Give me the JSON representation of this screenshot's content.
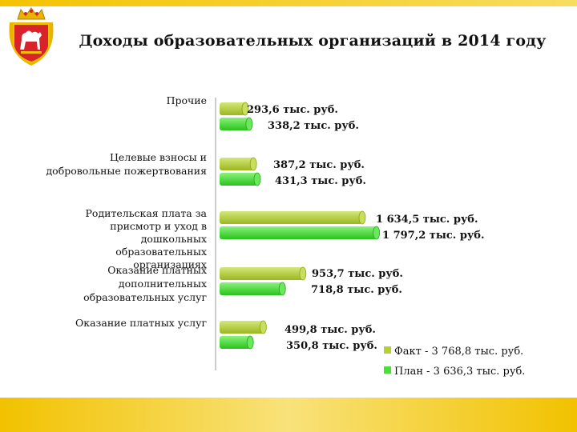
{
  "title": "Доходы образовательных организаций в 2014 году",
  "colors": {
    "fact": "#b6cf34",
    "plan": "#49e03a",
    "band": "#f4c300"
  },
  "chart_data": {
    "type": "bar",
    "orientation": "horizontal",
    "title": "Доходы образовательных организаций в 2014 году",
    "categories": [
      "Прочие",
      "Целевые взносы и добровольные пожертвования",
      "Родительская плата за присмотр и уход в дошкольных образовательных организациях",
      "Оказание платных дополнительных образовательных услуг",
      "Оказание платных услуг"
    ],
    "category_label_lines": [
      [
        "Прочие"
      ],
      [
        "Целевые взносы и",
        "добровольные пожертвования"
      ],
      [
        "Родительская плата за",
        "присмотр и уход в",
        "дошкольных",
        "образовательных",
        "организациях"
      ],
      [
        "Оказание платных",
        "дополнительных",
        "образовательных услуг"
      ],
      [
        "Оказание платных услуг"
      ]
    ],
    "series": [
      {
        "name": "Факт",
        "legend": "Факт - 3 768,8 тыс. руб.",
        "values": [
          293.6,
          387.2,
          1634.5,
          953.7,
          499.8
        ],
        "labels": [
          "293,6 тыс. руб.",
          "387,2 тыс. руб.",
          "1 634,5 тыс. руб.",
          "953,7 тыс. руб.",
          "499,8 тыс. руб."
        ]
      },
      {
        "name": "План",
        "legend": "План - 3 636,3 тыс. руб.",
        "values": [
          338.2,
          431.3,
          1797.2,
          718.8,
          350.8
        ],
        "labels": [
          "338,2 тыс. руб.",
          "431,3 тыс. руб.",
          "1 797,2 тыс. руб.",
          "718,8 тыс. руб.",
          "350,8 тыс. руб."
        ]
      }
    ],
    "xlim": [
      0,
      2000
    ],
    "grid": false,
    "legend_position": "bottom-right"
  }
}
